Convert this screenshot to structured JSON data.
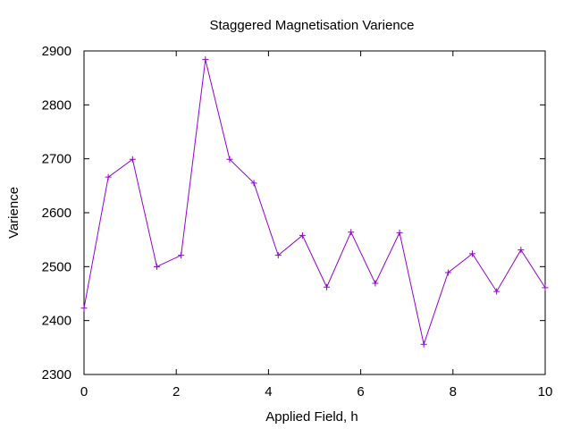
{
  "chart_data": {
    "type": "line",
    "title": "Staggered Magnetisation Varience",
    "xlabel": "Applied Field, h",
    "ylabel": "Varience",
    "xlim": [
      0,
      10
    ],
    "ylim": [
      2300,
      2900
    ],
    "xticks": [
      0,
      2,
      4,
      6,
      8,
      10
    ],
    "yticks": [
      2300,
      2400,
      2500,
      2600,
      2700,
      2800,
      2900
    ],
    "grid": false,
    "legend": "none",
    "series": [
      {
        "color": "#9400d3",
        "marker": "plus",
        "x": [
          0,
          0.526,
          1.053,
          1.579,
          2.105,
          2.632,
          3.158,
          3.684,
          4.211,
          4.737,
          5.263,
          5.789,
          6.316,
          6.842,
          7.368,
          7.895,
          8.421,
          8.947,
          9.474,
          10
        ],
        "values": [
          2423,
          2666,
          2699,
          2500,
          2521,
          2884,
          2699,
          2655,
          2521,
          2558,
          2462,
          2564,
          2469,
          2563,
          2356,
          2489,
          2524,
          2454,
          2531,
          2461
        ]
      }
    ]
  }
}
